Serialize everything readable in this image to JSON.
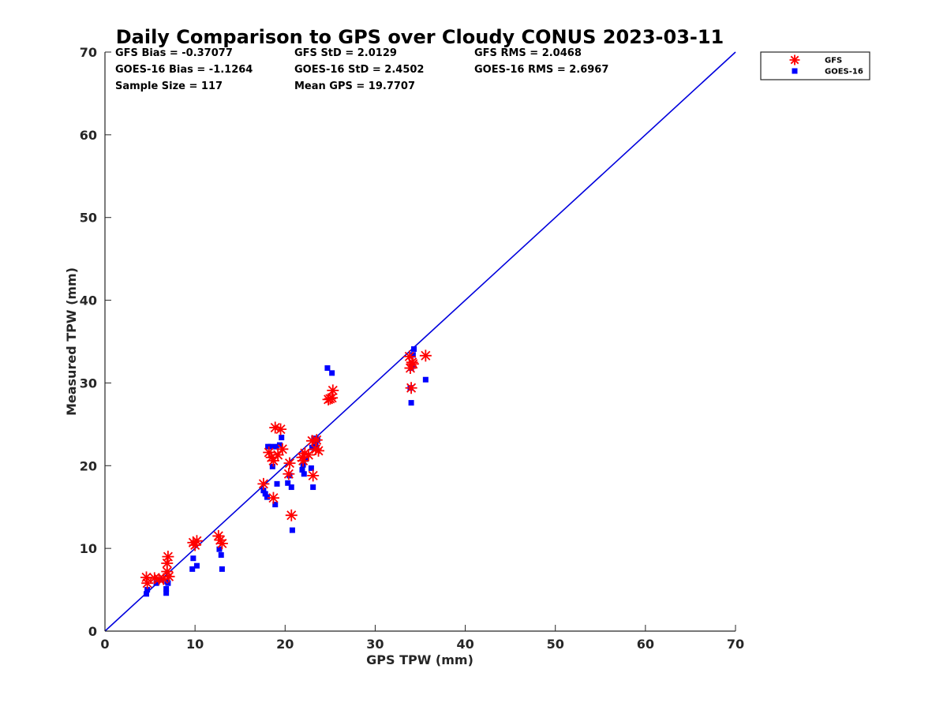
{
  "chart_data": {
    "type": "scatter",
    "title": "Daily Comparison to GPS over Cloudy CONUS 2023-03-11",
    "xlabel": "GPS TPW (mm)",
    "ylabel": "Measured TPW (mm)",
    "xlim": [
      0,
      70
    ],
    "ylim": [
      0,
      70
    ],
    "xticks": [
      "0",
      "10",
      "20",
      "30",
      "40",
      "50",
      "60",
      "70"
    ],
    "yticks": [
      "0",
      "10",
      "20",
      "30",
      "40",
      "50",
      "60",
      "70"
    ],
    "grid": false,
    "legend_position": "outside-top-right",
    "reference_line": {
      "x": [
        0,
        70
      ],
      "y": [
        0,
        70
      ],
      "color": "#0000dd"
    },
    "stats": [
      [
        "GFS Bias = -0.37077",
        "GFS StD = 2.0129",
        "GFS RMS = 2.0468"
      ],
      [
        "GOES-16 Bias = -1.1264",
        "GOES-16 StD = 2.4502",
        "GOES-16 RMS = 2.6967"
      ],
      [
        "Sample Size = 117",
        "Mean GPS = 19.7707"
      ]
    ],
    "series": [
      {
        "name": "GFS",
        "marker": "asterisk",
        "color": "#ff0000",
        "points": [
          [
            4.6,
            6.5
          ],
          [
            4.7,
            5.8
          ],
          [
            5.5,
            6.4
          ],
          [
            6.0,
            6.3
          ],
          [
            6.5,
            6.3
          ],
          [
            6.9,
            7.2
          ],
          [
            6.9,
            8.2
          ],
          [
            7.0,
            9.0
          ],
          [
            7.1,
            6.6
          ],
          [
            9.8,
            10.7
          ],
          [
            10.0,
            10.4
          ],
          [
            10.2,
            10.9
          ],
          [
            12.6,
            11.5
          ],
          [
            12.8,
            11.0
          ],
          [
            13.0,
            10.6
          ],
          [
            17.6,
            17.8
          ],
          [
            18.2,
            21.6
          ],
          [
            18.5,
            21.0
          ],
          [
            18.7,
            20.6
          ],
          [
            18.7,
            16.1
          ],
          [
            18.9,
            24.6
          ],
          [
            19.2,
            21.3
          ],
          [
            19.5,
            24.4
          ],
          [
            19.7,
            22.0
          ],
          [
            20.4,
            19.0
          ],
          [
            20.5,
            20.3
          ],
          [
            20.7,
            14.0
          ],
          [
            21.9,
            21.0
          ],
          [
            22.0,
            20.6
          ],
          [
            22.2,
            21.5
          ],
          [
            22.6,
            21.3
          ],
          [
            23.0,
            23.0
          ],
          [
            23.1,
            18.8
          ],
          [
            23.4,
            22.0
          ],
          [
            23.5,
            23.1
          ],
          [
            23.7,
            21.8
          ],
          [
            24.8,
            28.0
          ],
          [
            25.0,
            28.1
          ],
          [
            25.2,
            28.2
          ],
          [
            25.3,
            29.1
          ],
          [
            33.8,
            33.2
          ],
          [
            33.9,
            31.8
          ],
          [
            34.0,
            29.4
          ],
          [
            34.1,
            32.5
          ],
          [
            34.2,
            32.3
          ],
          [
            35.6,
            33.3
          ]
        ]
      },
      {
        "name": "GOES-16",
        "marker": "square",
        "color": "#0000ff",
        "points": [
          [
            4.6,
            4.5
          ],
          [
            4.7,
            5.0
          ],
          [
            5.7,
            5.8
          ],
          [
            6.2,
            6.2
          ],
          [
            6.8,
            4.6
          ],
          [
            6.8,
            5.1
          ],
          [
            6.9,
            6.0
          ],
          [
            7.0,
            5.8
          ],
          [
            9.7,
            7.5
          ],
          [
            9.8,
            8.8
          ],
          [
            10.2,
            7.9
          ],
          [
            12.7,
            9.9
          ],
          [
            12.9,
            9.2
          ],
          [
            13.0,
            7.5
          ],
          [
            17.6,
            17.0
          ],
          [
            17.8,
            16.6
          ],
          [
            18.0,
            16.2
          ],
          [
            18.1,
            22.3
          ],
          [
            18.4,
            22.3
          ],
          [
            18.6,
            19.9
          ],
          [
            18.9,
            15.3
          ],
          [
            19.0,
            22.3
          ],
          [
            19.1,
            17.8
          ],
          [
            19.4,
            22.5
          ],
          [
            19.6,
            23.4
          ],
          [
            20.3,
            17.9
          ],
          [
            20.5,
            18.8
          ],
          [
            20.7,
            17.4
          ],
          [
            20.8,
            12.2
          ],
          [
            21.9,
            19.5
          ],
          [
            22.0,
            20.1
          ],
          [
            22.1,
            19.0
          ],
          [
            22.3,
            20.8
          ],
          [
            22.9,
            19.7
          ],
          [
            23.0,
            22.2
          ],
          [
            23.1,
            17.4
          ],
          [
            23.2,
            23.3
          ],
          [
            23.4,
            22.7
          ],
          [
            23.5,
            22.1
          ],
          [
            23.6,
            23.2
          ],
          [
            24.7,
            31.8
          ],
          [
            25.2,
            31.2
          ],
          [
            33.9,
            29.4
          ],
          [
            34.0,
            27.6
          ],
          [
            34.0,
            31.8
          ],
          [
            34.1,
            32.2
          ],
          [
            34.2,
            33.4
          ],
          [
            34.3,
            34.1
          ],
          [
            35.6,
            30.4
          ]
        ]
      }
    ]
  }
}
